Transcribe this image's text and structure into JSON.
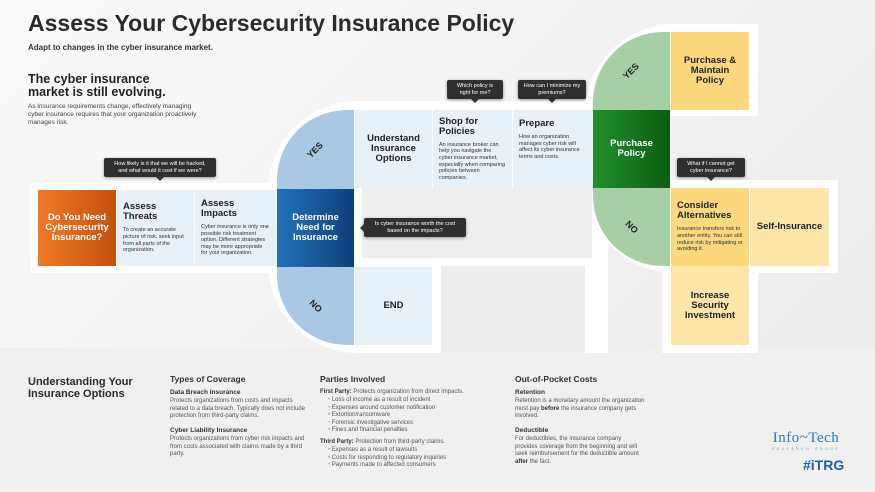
{
  "title": "Assess Your Cybersecurity Insurance Policy",
  "subtitle": "Adapt to changes in the cyber insurance market.",
  "intro": {
    "heading": "The cyber insurance market is still evolving.",
    "text": "As insurance requirements change, effectively managing cyber insurance requires that your organization proactively manages risk."
  },
  "flow": {
    "start": "Do You Need Cybersecurity Insurance?",
    "assess_threats": {
      "title": "Assess Threats",
      "text": "To create an accurate picture of risk, seek input from all parts of the organization."
    },
    "assess_impacts": {
      "title": "Assess Impacts",
      "text": "Cyber insurance is only one possible risk treatment option. Different strategies may be more appropriate for your organization."
    },
    "determine": "Determine Need for Insurance",
    "yes1": "YES",
    "no1": "NO",
    "end": "END",
    "understand": "Understand Insurance Options",
    "shop": {
      "title": "Shop for Policies",
      "text": "An insurance broker can help you navigate the cyber insurance market, especially when comparing policies between companies."
    },
    "prepare": {
      "title": "Prepare",
      "text": "How an organization manages cyber risk will affect its cyber insurance terms and costs."
    },
    "purchase": "Purchase Policy",
    "yes2": "YES",
    "no2": "NO",
    "maintain": "Purchase & Maintain Policy",
    "alternatives": {
      "title": "Consider Alternatives",
      "text": "Insurance transfers risk to another entity. You can still reduce risk by mitigating or avoiding it."
    },
    "self": "Self-Insurance",
    "invest": "Increase Security Investment"
  },
  "tooltips": {
    "threats": "How likely is it that we will be hacked, and what would it cost if we were?",
    "determine": "Is cyber insurance worth the cost based on the impacts?",
    "shop": "Which policy is right for me?",
    "prepare": "How can I minimize my premiums?",
    "alternatives": "What if I cannot get cyber insurance?"
  },
  "bottom": {
    "heading": "Understanding Your Insurance Options",
    "coverage": {
      "heading": "Types of Coverage",
      "items": [
        {
          "title": "Data Breach Insurance",
          "text": "Protects organizations from costs and impacts related to a data breach. Typically does not include protection from third-party claims."
        },
        {
          "title": "Cyber Liability Insurance",
          "text": "Protects organizations from cyber risk impacts and from costs associated with claims made by a third party."
        }
      ]
    },
    "parties": {
      "heading": "Parties Involved",
      "first_label": "First Party:",
      "first_text": " Protects organization from direct impacts.",
      "first_items": [
        "Loss of income as a result of incident",
        "Expenses around customer notification",
        "Extortion/ransomware",
        "Forensic investigative services",
        "Fines and financial penalties"
      ],
      "third_label": "Third Party:",
      "third_text": " Protection from third-party claims.",
      "third_items": [
        "Expenses as a result of lawsuits",
        "Costs for responding to regulatory inquiries",
        "Payments made to affected consumers"
      ]
    },
    "costs": {
      "heading": "Out-of-Pocket Costs",
      "retention_title": "Retention",
      "retention": [
        "Retention is a monetary amount the organization must pay ",
        "before",
        " the insurance company gets involved."
      ],
      "deductible_title": "Deductible",
      "deductible": [
        "For deductibles, the insurance company provides coverage from the beginning and will seek reimbursement for the deductible amount ",
        "after",
        " the fact."
      ]
    }
  },
  "logo": {
    "name": "Info~Tech",
    "tagline": "RESEARCH GROUP",
    "hashtag": "#iTRG"
  },
  "colors": {
    "orange": "#e0661c",
    "blue": "#1a5c9e",
    "light_blue": "#a9c8e4",
    "green": "#1b7a22",
    "light_green": "#a7cfa6",
    "yellow": "#fdd97e",
    "pale_yellow": "#fde6a8"
  }
}
